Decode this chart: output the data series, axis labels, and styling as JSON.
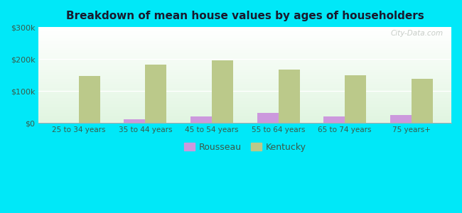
{
  "title": "Breakdown of mean house values by ages of householders",
  "categories": [
    "25 to 34 years",
    "35 to 44 years",
    "45 to 54 years",
    "55 to 64 years",
    "65 to 74 years",
    "75 years+"
  ],
  "rousseau_values": [
    1500,
    12000,
    22000,
    33000,
    20000,
    25000
  ],
  "kentucky_values": [
    148000,
    183000,
    197000,
    168000,
    150000,
    138000
  ],
  "rousseau_color": "#cc99dd",
  "kentucky_color": "#bbc98a",
  "background_outer": "#00e8f8",
  "title_color": "#1a1a2e",
  "tick_label_color": "#3a5a4a",
  "ylim": [
    0,
    300000
  ],
  "yticks": [
    0,
    100000,
    200000,
    300000
  ],
  "ytick_labels": [
    "$0",
    "$100k",
    "$200k",
    "$300k"
  ],
  "bar_width": 0.32,
  "legend_labels": [
    "Rousseau",
    "Kentucky"
  ],
  "watermark": "City-Data.com"
}
